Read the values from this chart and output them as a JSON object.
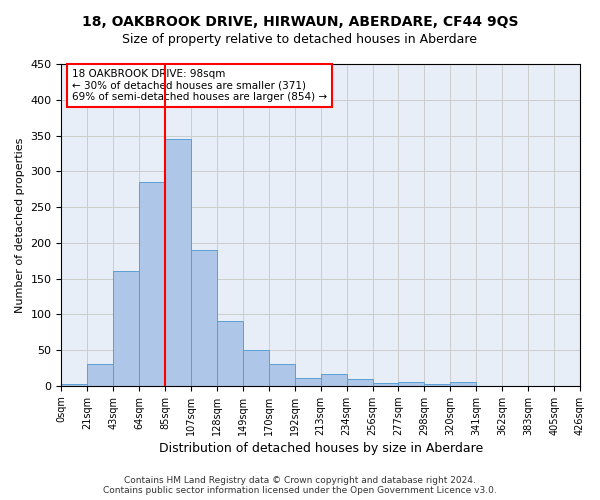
{
  "title": "18, OAKBROOK DRIVE, HIRWAUN, ABERDARE, CF44 9QS",
  "subtitle": "Size of property relative to detached houses in Aberdare",
  "xlabel": "Distribution of detached houses by size in Aberdare",
  "ylabel": "Number of detached properties",
  "bar_values": [
    3,
    30,
    160,
    285,
    345,
    190,
    90,
    50,
    30,
    11,
    16,
    9,
    4,
    5,
    2,
    5,
    0,
    0,
    0,
    0
  ],
  "bar_labels": [
    "0sqm",
    "21sqm",
    "43sqm",
    "64sqm",
    "85sqm",
    "107sqm",
    "128sqm",
    "149sqm",
    "170sqm",
    "192sqm",
    "213sqm",
    "234sqm",
    "256sqm",
    "277sqm",
    "298sqm",
    "320sqm",
    "341sqm",
    "362sqm",
    "383sqm",
    "405sqm",
    "426sqm"
  ],
  "bar_color": "#aec6e8",
  "bar_edgecolor": "#5a9fd4",
  "vline_x": 3.5,
  "vline_color": "red",
  "annotation_text": "18 OAKBROOK DRIVE: 98sqm\n← 30% of detached houses are smaller (371)\n69% of semi-detached houses are larger (854) →",
  "annotation_box_color": "white",
  "annotation_box_edgecolor": "red",
  "ylim": [
    0,
    450
  ],
  "yticks": [
    0,
    50,
    100,
    150,
    200,
    250,
    300,
    350,
    400,
    450
  ],
  "footer_text": "Contains HM Land Registry data © Crown copyright and database right 2024.\nContains public sector information licensed under the Open Government Licence v3.0.",
  "background_color": "#e8eef8",
  "grid_color": "#cccccc"
}
